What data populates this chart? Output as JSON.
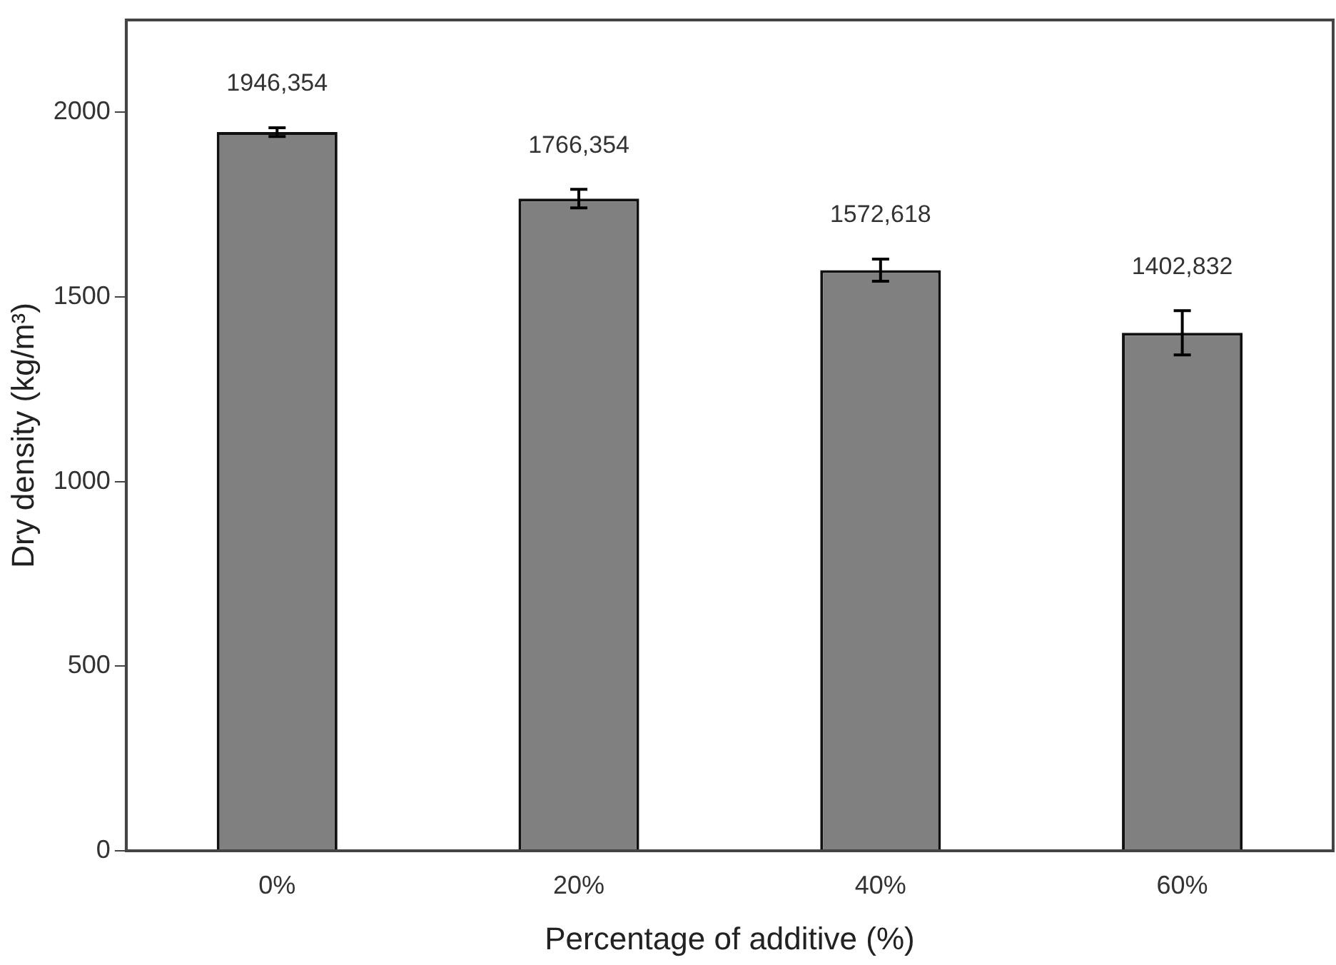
{
  "chart_data": {
    "type": "bar",
    "xlabel": "Percentage of additive (%)",
    "ylabel": "Dry density (kg/m³)",
    "categories": [
      "0%",
      "20%",
      "40%",
      "60%"
    ],
    "values": [
      1946.354,
      1766.354,
      1572.618,
      1402.832
    ],
    "errors": [
      12,
      25,
      30,
      60
    ],
    "value_labels": [
      "1946,354",
      "1766,354",
      "1572,618",
      "1402,832"
    ],
    "color": "#808080",
    "ylim": [
      0,
      2250
    ],
    "yticks": [
      0,
      500,
      1000,
      1500,
      2000
    ],
    "grid": false,
    "legend": false
  }
}
